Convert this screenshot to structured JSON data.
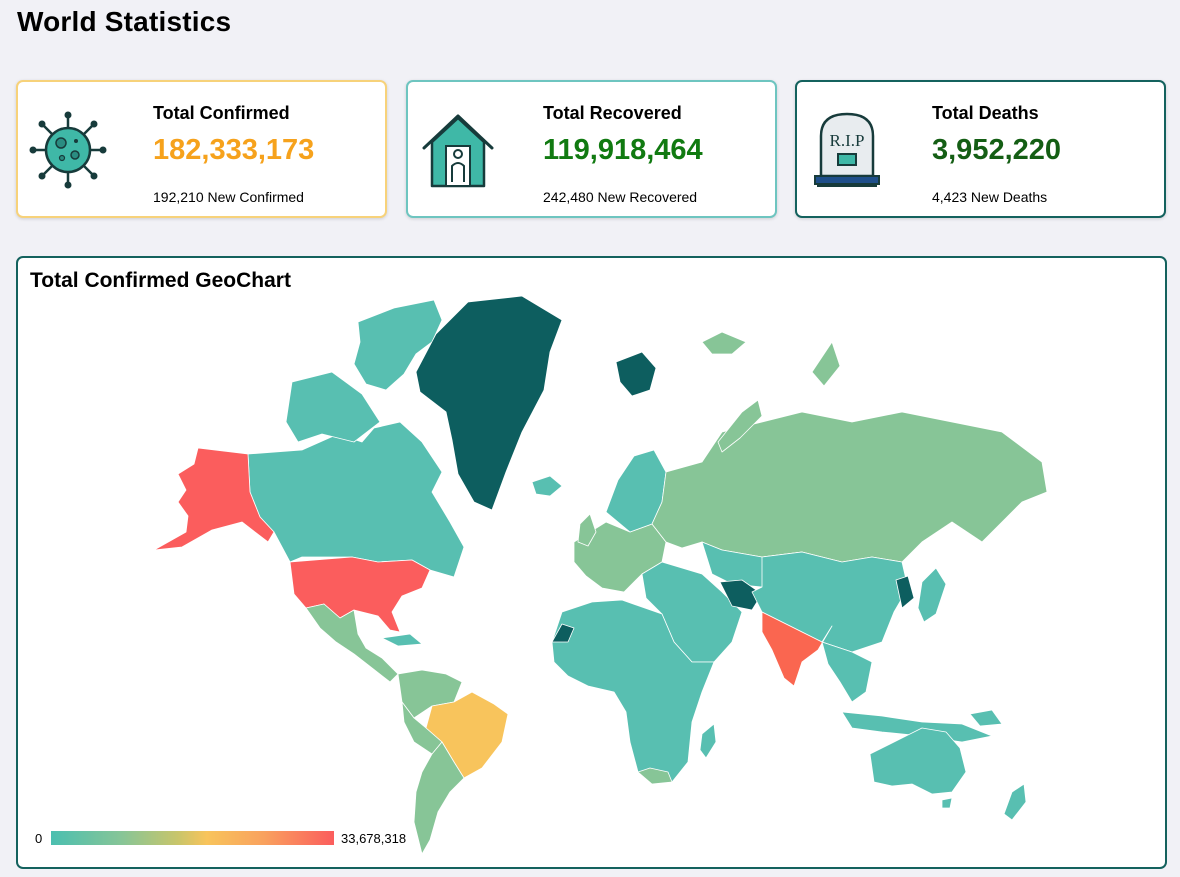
{
  "page": {
    "title": "World Statistics"
  },
  "cards": {
    "confirmed": {
      "label": "Total Confirmed",
      "value": "182,333,173",
      "sub": "192,210 New Confirmed",
      "icon": "virus-icon",
      "color": "#f6a21c"
    },
    "recovered": {
      "label": "Total Recovered",
      "value": "119,918,464",
      "sub": "242,480 New Recovered",
      "icon": "house-person-icon",
      "color": "#117a11"
    },
    "deaths": {
      "label": "Total Deaths",
      "value": "3,952,220",
      "sub": "4,423 New Deaths",
      "icon": "tombstone-icon",
      "tombstone_text": "R.I.P",
      "color": "#145e14"
    }
  },
  "map": {
    "title": "Total Confirmed GeoChart",
    "legend": {
      "min": "0",
      "max": "33,678,318",
      "colors": [
        "#4bbfb0",
        "#87c597",
        "#f8c45c",
        "#fb5d5d"
      ]
    },
    "highlighted_regions": {
      "United States": "#fb5d5d",
      "India": "#fa6650",
      "Brazil": "#f8c45c",
      "Greenland": "#0d5e5f"
    }
  }
}
